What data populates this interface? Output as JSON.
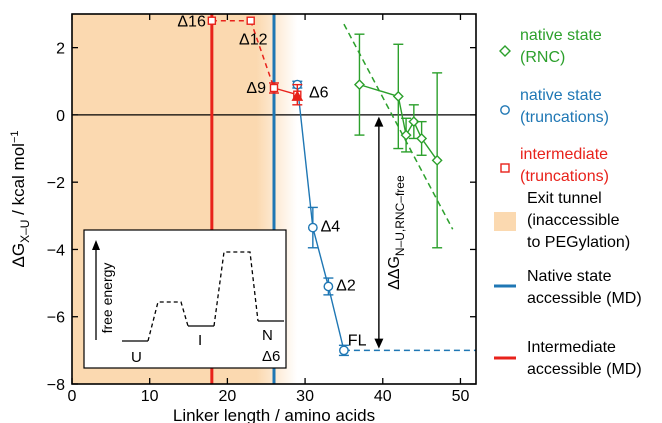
{
  "chart_data": {
    "type": "scatter",
    "xlabel": "Linker length / amino acids",
    "ylabel_main": "ΔG",
    "ylabel_sub": "X–U",
    "ylabel_unit": " / kcal mol",
    "ylabel_sup": "−1",
    "xlim": [
      0,
      52
    ],
    "ylim": [
      -8,
      3
    ],
    "x_ticks": [
      0,
      10,
      20,
      30,
      40,
      50
    ],
    "y_ticks": [
      2,
      0,
      -2,
      -4,
      -6,
      -8
    ],
    "y_tick_labels": [
      "2",
      "0",
      "−2",
      "−4",
      "−6",
      "−8"
    ],
    "exit_tunnel_x": [
      0,
      29
    ],
    "native_accessible_x": 26,
    "intermediate_accessible_x": 18,
    "colors": {
      "rnc": "#2ca02c",
      "native": "#1f77b4",
      "intermediate": "#e8221b",
      "tunnel": "#fbd9b0",
      "line": "#000000"
    },
    "series": [
      {
        "name_line1": "native state",
        "name_line2": "(RNC)",
        "marker": "diamond",
        "x": [
          37,
          42,
          43,
          44,
          45,
          47
        ],
        "y": [
          0.9,
          0.55,
          -0.6,
          -0.2,
          -0.7,
          -1.35
        ],
        "err": [
          1.5,
          1.55,
          0.5,
          0.5,
          0.5,
          2.6
        ],
        "fit_x": [
          35,
          49
        ],
        "fit_y": [
          2.7,
          -3.4
        ]
      },
      {
        "name_line1": "native state",
        "name_line2": "(truncations)",
        "marker": "circle",
        "x": [
          29,
          31,
          33,
          35
        ],
        "y": [
          0.9,
          -3.35,
          -5.1,
          -7.0
        ],
        "err": [
          0.1,
          0.6,
          0.25,
          0.15
        ],
        "labels": [
          "Δ6",
          "Δ4",
          "Δ2",
          "FL"
        ],
        "ext_x": [
          35,
          52
        ],
        "ext_y": [
          -7.0,
          -7.0
        ]
      },
      {
        "name_line1": "intermediate",
        "name_line2": "(truncations)",
        "marker": "square",
        "x": [
          18,
          23,
          26,
          29
        ],
        "y": [
          2.8,
          2.8,
          0.8,
          0.6
        ],
        "err": [
          0,
          0,
          0.15,
          0.3
        ],
        "labels": [
          "Δ16",
          "Δ12",
          "Δ9",
          ""
        ]
      }
    ],
    "ddg_label_main": "ΔΔG",
    "ddg_label_sub": "N–U,RNC–free",
    "legend_extra": [
      {
        "line1": "Exit tunnel",
        "line2": "(inaccessible",
        "line3": "to PEGylation)"
      },
      {
        "line1": "Native state",
        "line2": "accessible (MD)"
      },
      {
        "line1": "Intermediate",
        "line2": "accessible (MD)"
      }
    ],
    "inset": {
      "ylabel": "free energy",
      "labels": [
        "U",
        "I",
        "N",
        "Δ6"
      ]
    }
  }
}
